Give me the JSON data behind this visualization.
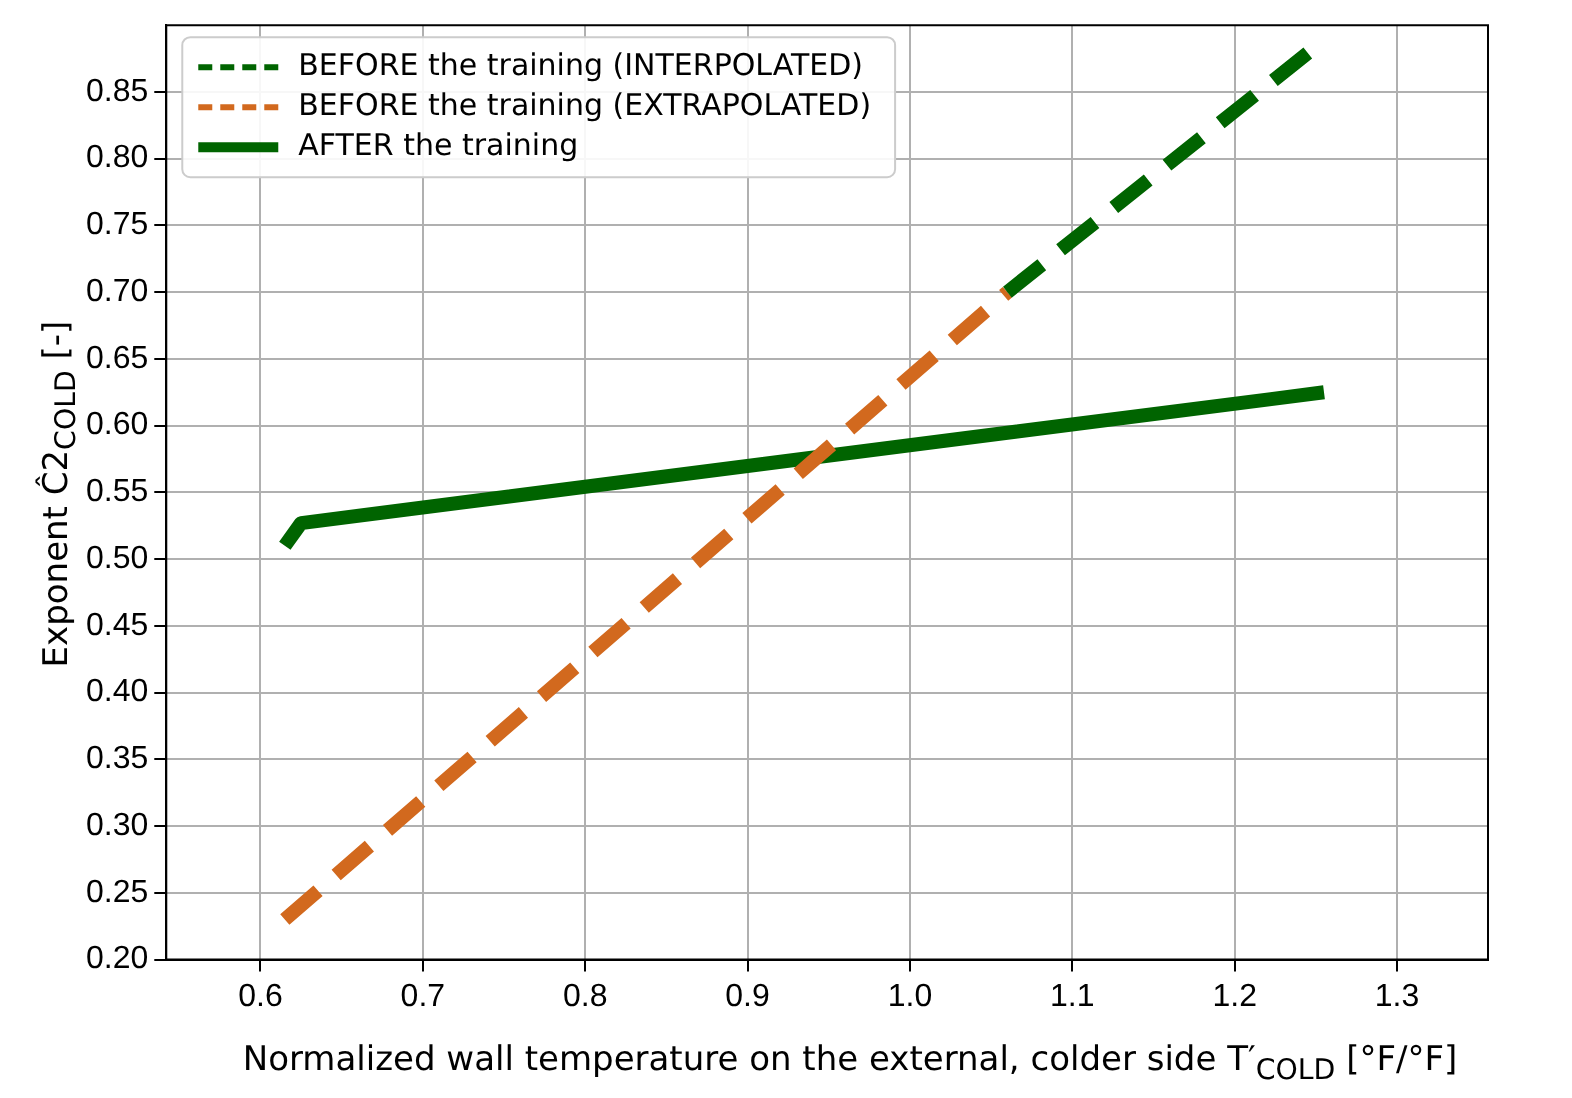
{
  "chart_data": {
    "type": "line",
    "xlabel": "Normalized wall temperature on the external, colder side  T′$_{COLD}$ [°F/°F]",
    "ylabel": "Exponent Ĉ2$_{COLD}$ [-]",
    "xlim": [
      0.542,
      1.356
    ],
    "xticks": [
      0.6,
      0.7,
      0.8,
      0.9,
      {
        "value": 1,
        "label": "1.0"
      },
      1.1,
      1.2,
      1.3
    ],
    "ylim": [
      0.2,
      0.9
    ],
    "yticks": [
      {
        "value": 0.2,
        "label": "0.20"
      },
      0.25,
      {
        "value": 0.3,
        "label": "0.30"
      },
      0.35,
      {
        "value": 0.4,
        "label": "0.40"
      },
      0.45,
      {
        "value": 0.5,
        "label": "0.50"
      },
      0.55,
      {
        "value": 0.6,
        "label": "0.60"
      },
      0.65,
      {
        "value": 0.7,
        "label": "0.70"
      },
      0.75,
      {
        "value": 0.8,
        "label": "0.80"
      },
      0.85
    ],
    "grid": true,
    "legend": "top left",
    "marker": "none",
    "series": [
      {
        "name": "BEFORE the training (INTERPOLATED)",
        "color": "#006400",
        "line_style": "dashed",
        "x": [
          1.06,
          1.25
        ],
        "values": [
          0.7,
          0.884
        ]
      },
      {
        "name": "BEFORE the training (EXTRAPOLATED)",
        "color": "#d2691e",
        "line_style": "dashed",
        "x": [
          0.615,
          1.06
        ],
        "values": [
          0.23,
          0.7
        ]
      },
      {
        "name": "AFTER the training",
        "color": "#006400",
        "line_style": "solid",
        "x": [
          0.615,
          0.625,
          1.255
        ],
        "values": [
          0.51,
          0.527,
          0.625
        ]
      }
    ]
  }
}
